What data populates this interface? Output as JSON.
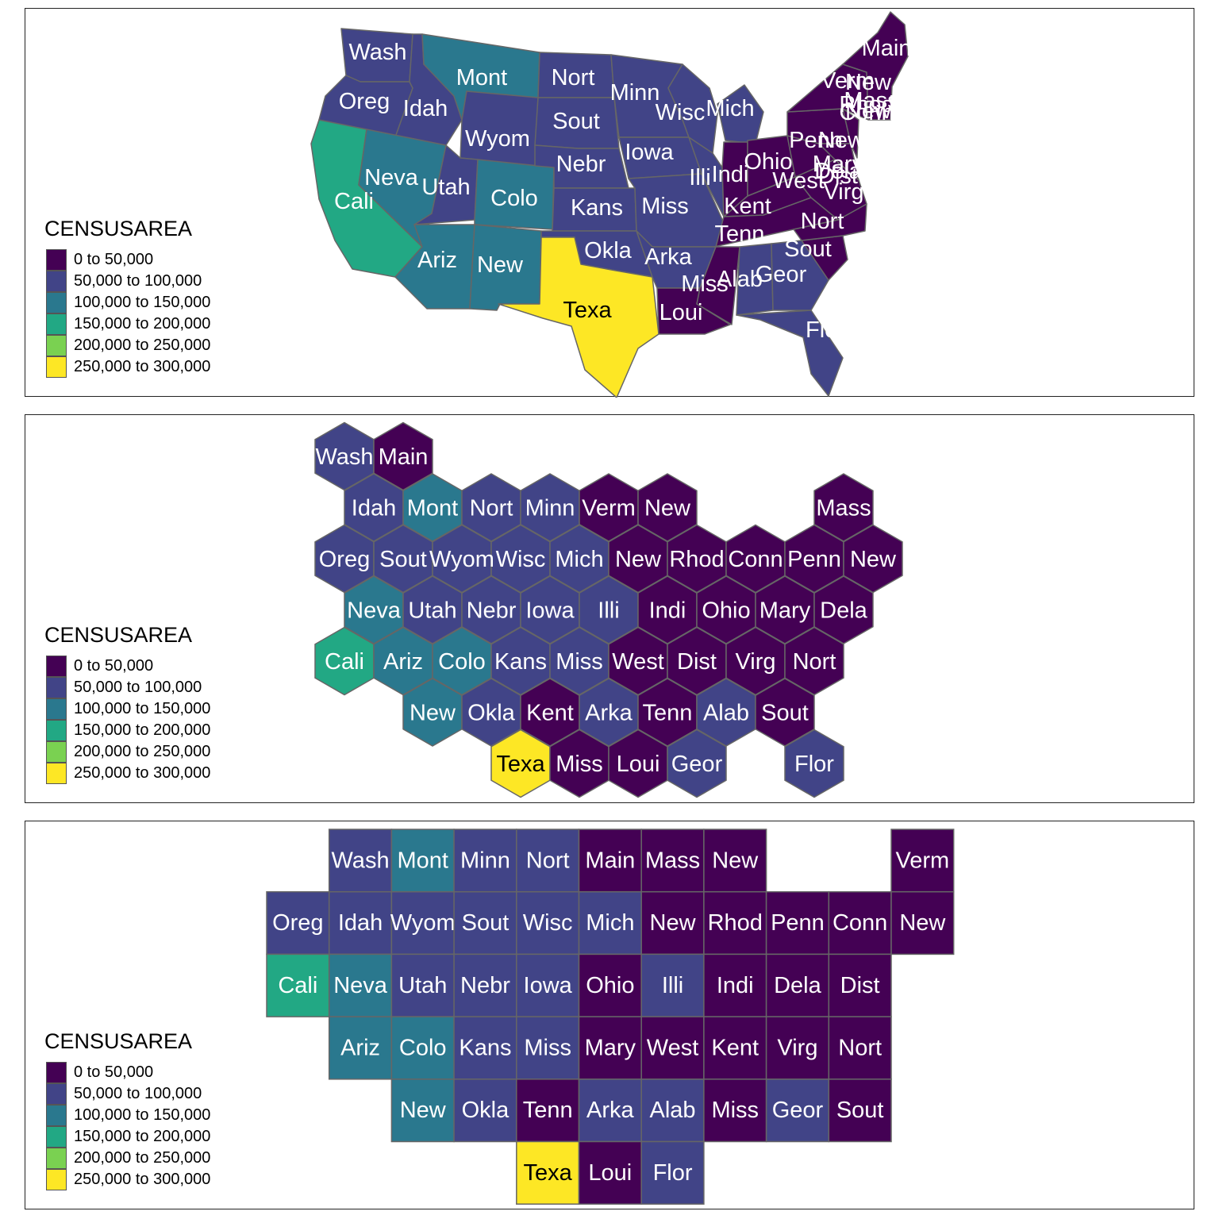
{
  "legend": {
    "title": "CENSUSAREA",
    "items": [
      {
        "label": "0 to 50,000",
        "color": "#440154"
      },
      {
        "label": "50,000 to 100,000",
        "color": "#414487"
      },
      {
        "label": "100,000 to 150,000",
        "color": "#2A788E"
      },
      {
        "label": "150,000 to 200,000",
        "color": "#22A884"
      },
      {
        "label": "200,000 to 250,000",
        "color": "#7AD151"
      },
      {
        "label": "250,000 to 300,000",
        "color": "#FDE725"
      }
    ]
  },
  "map": {
    "labels": [
      {
        "text": "Wash",
        "cls": 1
      },
      {
        "text": "Oreg",
        "cls": 1
      },
      {
        "text": "Idah",
        "cls": 1
      },
      {
        "text": "Mont",
        "cls": 2
      },
      {
        "text": "Nort",
        "cls": 1
      },
      {
        "text": "Minn",
        "cls": 1
      },
      {
        "text": "Wisc",
        "cls": 1
      },
      {
        "text": "Mich",
        "cls": 1
      },
      {
        "text": "Sout",
        "cls": 1
      },
      {
        "text": "Wyom",
        "cls": 1
      },
      {
        "text": "Nebr",
        "cls": 1
      },
      {
        "text": "Iowa",
        "cls": 1
      },
      {
        "text": "Cali",
        "cls": 3
      },
      {
        "text": "Neva",
        "cls": 2
      },
      {
        "text": "Utah",
        "cls": 1
      },
      {
        "text": "Colo",
        "cls": 2
      },
      {
        "text": "Kans",
        "cls": 1
      },
      {
        "text": "Miss",
        "cls": 1
      },
      {
        "text": "Illi",
        "cls": 1
      },
      {
        "text": "Indi",
        "cls": 0
      },
      {
        "text": "Ohio",
        "cls": 0
      },
      {
        "text": "Ariz",
        "cls": 2
      },
      {
        "text": "New",
        "cls": 2
      },
      {
        "text": "Okla",
        "cls": 1
      },
      {
        "text": "Arka",
        "cls": 1
      },
      {
        "text": "Texa",
        "cls": 5
      },
      {
        "text": "Loui",
        "cls": 0
      },
      {
        "text": "Miss",
        "cls": 0
      },
      {
        "text": "Alab",
        "cls": 1
      },
      {
        "text": "Geor",
        "cls": 1
      },
      {
        "text": "Flor",
        "cls": 1
      },
      {
        "text": "Tenn",
        "cls": 0
      },
      {
        "text": "Kent",
        "cls": 0
      },
      {
        "text": "West",
        "cls": 0
      },
      {
        "text": "Virg",
        "cls": 0
      },
      {
        "text": "Nort",
        "cls": 0
      },
      {
        "text": "Sout",
        "cls": 0
      },
      {
        "text": "Penn",
        "cls": 0
      },
      {
        "text": "New",
        "cls": 0
      },
      {
        "text": "New",
        "cls": 0
      },
      {
        "text": "Mary",
        "cls": 0
      },
      {
        "text": "Dela",
        "cls": 0
      },
      {
        "text": "Dist",
        "cls": 0
      },
      {
        "text": "Main",
        "cls": 0
      },
      {
        "text": "Verm",
        "cls": 0
      },
      {
        "text": "New",
        "cls": 0
      },
      {
        "text": "Mass",
        "cls": 0
      },
      {
        "text": "Conn",
        "cls": 0
      },
      {
        "text": "Rhod",
        "cls": 0
      }
    ]
  },
  "hexmap": {
    "cells": [
      {
        "text": "Wash",
        "row": 0,
        "col": 0,
        "cls": 1
      },
      {
        "text": "Main",
        "row": 0,
        "col": 1,
        "cls": 0
      },
      {
        "text": "Idah",
        "row": 1,
        "col": 0,
        "cls": 1
      },
      {
        "text": "Mont",
        "row": 1,
        "col": 1,
        "cls": 2
      },
      {
        "text": "Nort",
        "row": 1,
        "col": 2,
        "cls": 1
      },
      {
        "text": "Minn",
        "row": 1,
        "col": 3,
        "cls": 1
      },
      {
        "text": "Verm",
        "row": 1,
        "col": 4,
        "cls": 0
      },
      {
        "text": "New",
        "row": 1,
        "col": 5,
        "cls": 0
      },
      {
        "text": "Mass",
        "row": 1,
        "col": 8,
        "cls": 0
      },
      {
        "text": "Oreg",
        "row": 2,
        "col": 0,
        "cls": 1
      },
      {
        "text": "Sout",
        "row": 2,
        "col": 1,
        "cls": 1
      },
      {
        "text": "Wyom",
        "row": 2,
        "col": 2,
        "cls": 1
      },
      {
        "text": "Wisc",
        "row": 2,
        "col": 3,
        "cls": 1
      },
      {
        "text": "Mich",
        "row": 2,
        "col": 4,
        "cls": 1
      },
      {
        "text": "New",
        "row": 2,
        "col": 5,
        "cls": 0
      },
      {
        "text": "Rhod",
        "row": 2,
        "col": 6,
        "cls": 0
      },
      {
        "text": "Conn",
        "row": 2,
        "col": 7,
        "cls": 0
      },
      {
        "text": "Penn",
        "row": 2,
        "col": 8,
        "cls": 0
      },
      {
        "text": "New",
        "row": 2,
        "col": 9,
        "cls": 0
      },
      {
        "text": "Neva",
        "row": 3,
        "col": 0,
        "cls": 2
      },
      {
        "text": "Utah",
        "row": 3,
        "col": 1,
        "cls": 1
      },
      {
        "text": "Nebr",
        "row": 3,
        "col": 2,
        "cls": 1
      },
      {
        "text": "Iowa",
        "row": 3,
        "col": 3,
        "cls": 1
      },
      {
        "text": "Illi",
        "row": 3,
        "col": 4,
        "cls": 1
      },
      {
        "text": "Indi",
        "row": 3,
        "col": 5,
        "cls": 0
      },
      {
        "text": "Ohio",
        "row": 3,
        "col": 6,
        "cls": 0
      },
      {
        "text": "Mary",
        "row": 3,
        "col": 7,
        "cls": 0
      },
      {
        "text": "Dela",
        "row": 3,
        "col": 8,
        "cls": 0
      },
      {
        "text": "Cali",
        "row": 4,
        "col": 0,
        "cls": 3
      },
      {
        "text": "Ariz",
        "row": 4,
        "col": 1,
        "cls": 2
      },
      {
        "text": "Colo",
        "row": 4,
        "col": 2,
        "cls": 2
      },
      {
        "text": "Kans",
        "row": 4,
        "col": 3,
        "cls": 1
      },
      {
        "text": "Miss",
        "row": 4,
        "col": 4,
        "cls": 1
      },
      {
        "text": "West",
        "row": 4,
        "col": 5,
        "cls": 0
      },
      {
        "text": "Dist",
        "row": 4,
        "col": 6,
        "cls": 0
      },
      {
        "text": "Virg",
        "row": 4,
        "col": 7,
        "cls": 0
      },
      {
        "text": "Nort",
        "row": 4,
        "col": 8,
        "cls": 0
      },
      {
        "text": "New",
        "row": 5,
        "col": 1,
        "cls": 2
      },
      {
        "text": "Okla",
        "row": 5,
        "col": 2,
        "cls": 1
      },
      {
        "text": "Kent",
        "row": 5,
        "col": 3,
        "cls": 0
      },
      {
        "text": "Arka",
        "row": 5,
        "col": 4,
        "cls": 1
      },
      {
        "text": "Tenn",
        "row": 5,
        "col": 5,
        "cls": 0
      },
      {
        "text": "Alab",
        "row": 5,
        "col": 6,
        "cls": 1
      },
      {
        "text": "Sout",
        "row": 5,
        "col": 7,
        "cls": 0
      },
      {
        "text": "Texa",
        "row": 6,
        "col": 3,
        "cls": 5
      },
      {
        "text": "Miss",
        "row": 6,
        "col": 4,
        "cls": 0
      },
      {
        "text": "Loui",
        "row": 6,
        "col": 5,
        "cls": 0
      },
      {
        "text": "Geor",
        "row": 6,
        "col": 6,
        "cls": 1
      },
      {
        "text": "Flor",
        "row": 6,
        "col": 8,
        "cls": 1
      }
    ]
  },
  "gridmap": {
    "cells": [
      {
        "text": "Wash",
        "row": 0,
        "col": 1,
        "cls": 1
      },
      {
        "text": "Mont",
        "row": 0,
        "col": 2,
        "cls": 2
      },
      {
        "text": "Minn",
        "row": 0,
        "col": 3,
        "cls": 1
      },
      {
        "text": "Nort",
        "row": 0,
        "col": 4,
        "cls": 1
      },
      {
        "text": "Main",
        "row": 0,
        "col": 5,
        "cls": 0
      },
      {
        "text": "Mass",
        "row": 0,
        "col": 6,
        "cls": 0
      },
      {
        "text": "New",
        "row": 0,
        "col": 7,
        "cls": 0
      },
      {
        "text": "Verm",
        "row": 0,
        "col": 10,
        "cls": 0
      },
      {
        "text": "Oreg",
        "row": 1,
        "col": 0,
        "cls": 1
      },
      {
        "text": "Idah",
        "row": 1,
        "col": 1,
        "cls": 1
      },
      {
        "text": "Wyom",
        "row": 1,
        "col": 2,
        "cls": 1
      },
      {
        "text": "Sout",
        "row": 1,
        "col": 3,
        "cls": 1
      },
      {
        "text": "Wisc",
        "row": 1,
        "col": 4,
        "cls": 1
      },
      {
        "text": "Mich",
        "row": 1,
        "col": 5,
        "cls": 1
      },
      {
        "text": "New",
        "row": 1,
        "col": 6,
        "cls": 0
      },
      {
        "text": "Rhod",
        "row": 1,
        "col": 7,
        "cls": 0
      },
      {
        "text": "Penn",
        "row": 1,
        "col": 8,
        "cls": 0
      },
      {
        "text": "Conn",
        "row": 1,
        "col": 9,
        "cls": 0
      },
      {
        "text": "New",
        "row": 1,
        "col": 10,
        "cls": 0
      },
      {
        "text": "Cali",
        "row": 2,
        "col": 0,
        "cls": 3
      },
      {
        "text": "Neva",
        "row": 2,
        "col": 1,
        "cls": 2
      },
      {
        "text": "Utah",
        "row": 2,
        "col": 2,
        "cls": 1
      },
      {
        "text": "Nebr",
        "row": 2,
        "col": 3,
        "cls": 1
      },
      {
        "text": "Iowa",
        "row": 2,
        "col": 4,
        "cls": 1
      },
      {
        "text": "Ohio",
        "row": 2,
        "col": 5,
        "cls": 0
      },
      {
        "text": "Illi",
        "row": 2,
        "col": 6,
        "cls": 1
      },
      {
        "text": "Indi",
        "row": 2,
        "col": 7,
        "cls": 0
      },
      {
        "text": "Dela",
        "row": 2,
        "col": 8,
        "cls": 0
      },
      {
        "text": "Dist",
        "row": 2,
        "col": 9,
        "cls": 0
      },
      {
        "text": "Ariz",
        "row": 3,
        "col": 1,
        "cls": 2
      },
      {
        "text": "Colo",
        "row": 3,
        "col": 2,
        "cls": 2
      },
      {
        "text": "Kans",
        "row": 3,
        "col": 3,
        "cls": 1
      },
      {
        "text": "Miss",
        "row": 3,
        "col": 4,
        "cls": 1
      },
      {
        "text": "Mary",
        "row": 3,
        "col": 5,
        "cls": 0
      },
      {
        "text": "West",
        "row": 3,
        "col": 6,
        "cls": 0
      },
      {
        "text": "Kent",
        "row": 3,
        "col": 7,
        "cls": 0
      },
      {
        "text": "Virg",
        "row": 3,
        "col": 8,
        "cls": 0
      },
      {
        "text": "Nort",
        "row": 3,
        "col": 9,
        "cls": 0
      },
      {
        "text": "New",
        "row": 4,
        "col": 2,
        "cls": 2
      },
      {
        "text": "Okla",
        "row": 4,
        "col": 3,
        "cls": 1
      },
      {
        "text": "Tenn",
        "row": 4,
        "col": 4,
        "cls": 0
      },
      {
        "text": "Arka",
        "row": 4,
        "col": 5,
        "cls": 1
      },
      {
        "text": "Alab",
        "row": 4,
        "col": 6,
        "cls": 1
      },
      {
        "text": "Miss",
        "row": 4,
        "col": 7,
        "cls": 0
      },
      {
        "text": "Geor",
        "row": 4,
        "col": 8,
        "cls": 1
      },
      {
        "text": "Sout",
        "row": 4,
        "col": 9,
        "cls": 0
      },
      {
        "text": "Texa",
        "row": 5,
        "col": 4,
        "cls": 5
      },
      {
        "text": "Loui",
        "row": 5,
        "col": 5,
        "cls": 0
      },
      {
        "text": "Flor",
        "row": 5,
        "col": 6,
        "cls": 1
      }
    ]
  }
}
